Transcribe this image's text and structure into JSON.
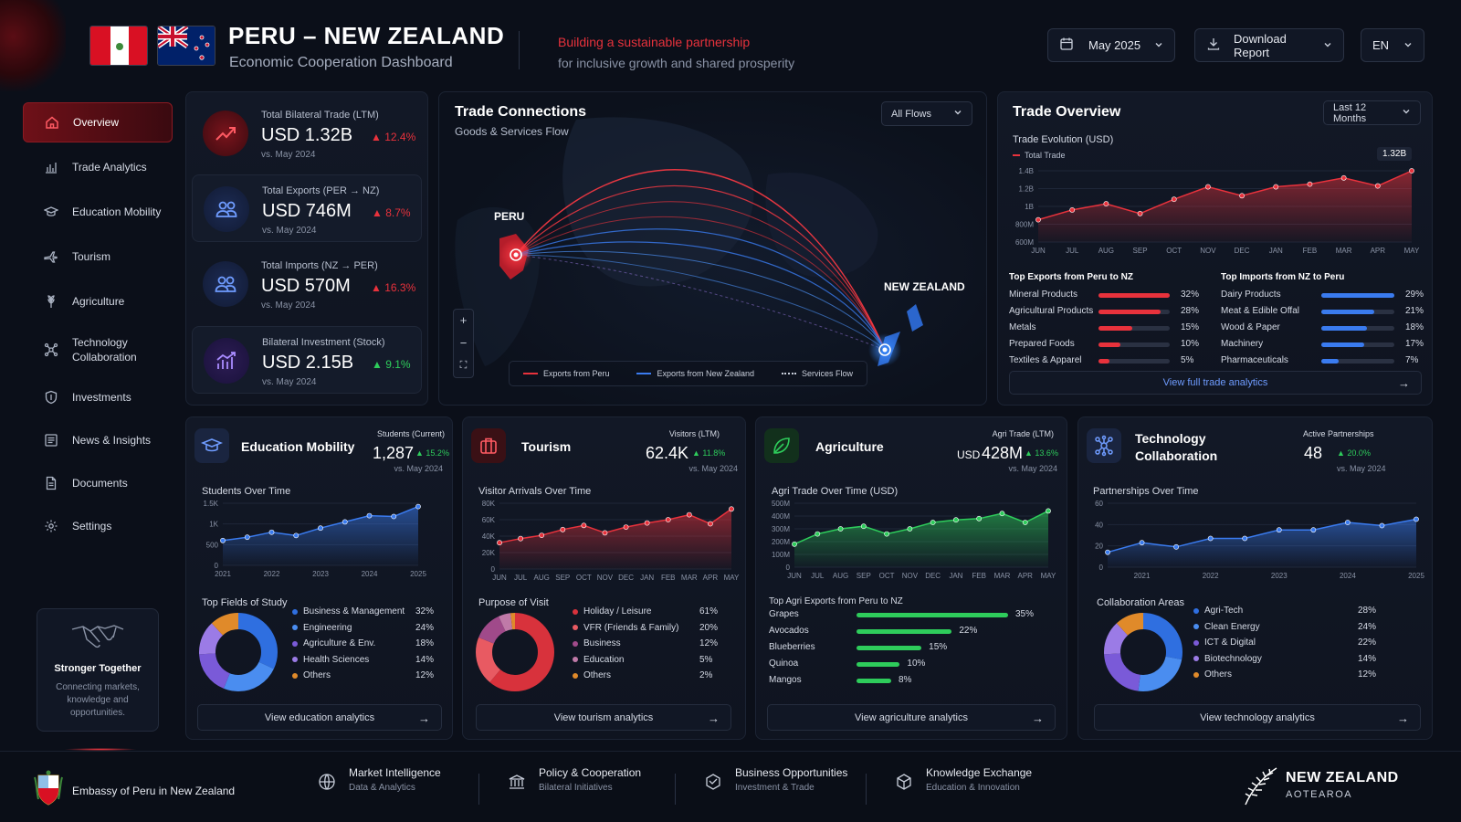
{
  "header": {
    "title": "PERU – NEW ZEALAND",
    "subtitle": "Economic Cooperation Dashboard",
    "tagline_1": "Building a sustainable partnership",
    "tagline_2": "for inclusive growth and shared prosperity",
    "date_label": "May 2025",
    "download_label": "Download Report",
    "lang_label": "EN"
  },
  "sidebar": {
    "items": [
      {
        "label": "Overview",
        "icon": "home-icon"
      },
      {
        "label": "Trade Analytics",
        "icon": "bar-chart-icon"
      },
      {
        "label": "Education Mobility",
        "icon": "graduation-cap-icon"
      },
      {
        "label": "Tourism",
        "icon": "plane-icon"
      },
      {
        "label": "Agriculture",
        "icon": "wheat-icon"
      },
      {
        "label": "Technology Collaboration",
        "icon": "network-icon"
      },
      {
        "label": "Investments",
        "icon": "shield-dollar-icon"
      },
      {
        "label": "News & Insights",
        "icon": "newspaper-icon"
      },
      {
        "label": "Documents",
        "icon": "document-icon"
      },
      {
        "label": "Settings",
        "icon": "gear-icon"
      }
    ],
    "together": {
      "title": "Stronger Together",
      "text": "Connecting markets, knowledge and opportunities."
    }
  },
  "stats": [
    {
      "label": "Total Bilateral Trade (LTM)",
      "value": "USD 1.32B",
      "change": "12.4%",
      "direction": "up",
      "compare": "vs. May 2024",
      "color": "#e8323c"
    },
    {
      "label": "Total Exports (PER → NZ)",
      "value": "USD 746M",
      "change": "8.7%",
      "direction": "up",
      "compare": "vs. May 2024",
      "color": "#e8323c"
    },
    {
      "label": "Total Imports (NZ → PER)",
      "value": "USD 570M",
      "change": "16.3%",
      "direction": "up",
      "compare": "vs. May 2024",
      "color": "#e8323c"
    },
    {
      "label": "Bilateral Investment (Stock)",
      "value": "USD 2.15B",
      "change": "9.1%",
      "direction": "up",
      "compare": "vs. May 2024",
      "color": "#2ecc5b"
    }
  ],
  "map": {
    "title": "Trade Connections",
    "subtitle": "Goods & Services Flow",
    "filter": "All Flows",
    "label_peru": "PERU",
    "label_nz": "NEW ZEALAND",
    "legend": [
      "Exports from Peru",
      "Exports from New Zealand",
      "Services Flow"
    ],
    "zoom_in": "+",
    "zoom_out": "−",
    "fullscreen": "⛶"
  },
  "trade_overview": {
    "title": "Trade Overview",
    "range": "Last 12 Months",
    "chart_title": "Trade Evolution (USD)",
    "legend": "Total Trade",
    "badge": "1.32B",
    "exports_title": "Top Exports from Peru to NZ",
    "imports_title": "Top Imports from NZ to Peru",
    "exports": [
      {
        "name": "Mineral Products",
        "pct": 32,
        "label": "32%"
      },
      {
        "name": "Agricultural Products",
        "pct": 28,
        "label": "28%"
      },
      {
        "name": "Metals",
        "pct": 15,
        "label": "15%"
      },
      {
        "name": "Prepared Foods",
        "pct": 10,
        "label": "10%"
      },
      {
        "name": "Textiles & Apparel",
        "pct": 5,
        "label": "5%"
      }
    ],
    "imports": [
      {
        "name": "Dairy Products",
        "pct": 29,
        "label": "29%"
      },
      {
        "name": "Meat & Edible Offal",
        "pct": 21,
        "label": "21%"
      },
      {
        "name": "Wood & Paper",
        "pct": 18,
        "label": "18%"
      },
      {
        "name": "Machinery",
        "pct": 17,
        "label": "17%"
      },
      {
        "name": "Pharmaceuticals",
        "pct": 7,
        "label": "7%"
      }
    ],
    "link": "View full trade analytics"
  },
  "education": {
    "title": "Education Mobility",
    "kpi_label": "Students (Current)",
    "kpi_value": "1,287",
    "kpi_change": "15.2%",
    "compare": "vs. May 2024",
    "chart_title": "Students Over Time",
    "donut_title": "Top Fields of Study",
    "fields": [
      {
        "name": "Business & Management",
        "pct": 32,
        "label": "32%",
        "color": "#2f6fe0"
      },
      {
        "name": "Engineering",
        "pct": 24,
        "label": "24%",
        "color": "#4a8df0"
      },
      {
        "name": "Agriculture & Env.",
        "pct": 18,
        "label": "18%",
        "color": "#7a5ad8"
      },
      {
        "name": "Health Sciences",
        "pct": 14,
        "label": "14%",
        "color": "#9b7be6"
      },
      {
        "name": "Others",
        "pct": 12,
        "label": "12%",
        "color": "#e08a2a"
      }
    ],
    "link": "View education analytics"
  },
  "tourism": {
    "title": "Tourism",
    "kpi_label": "Visitors (LTM)",
    "kpi_value": "62.4K",
    "kpi_change": "11.8%",
    "compare": "vs. May 2024",
    "chart_title": "Visitor Arrivals Over Time",
    "donut_title": "Purpose of Visit",
    "purposes": [
      {
        "name": "Holiday / Leisure",
        "pct": 61,
        "label": "61%",
        "color": "#d8323c"
      },
      {
        "name": "VFR (Friends & Family)",
        "pct": 20,
        "label": "20%",
        "color": "#e85a62"
      },
      {
        "name": "Business",
        "pct": 12,
        "label": "12%",
        "color": "#a04a8a"
      },
      {
        "name": "Education",
        "pct": 5,
        "label": "5%",
        "color": "#c07aa8"
      },
      {
        "name": "Others",
        "pct": 2,
        "label": "2%",
        "color": "#e08a2a"
      }
    ],
    "link": "View tourism analytics"
  },
  "agriculture": {
    "title": "Agriculture",
    "kpi_label": "Agri Trade (LTM)",
    "kpi_value_prefix": "USD",
    "kpi_value": "428M",
    "kpi_change": "13.6%",
    "compare": "vs. May 2024",
    "chart_title": "Agri Trade Over Time (USD)",
    "list_title": "Top Agri Exports from Peru to NZ",
    "items": [
      {
        "name": "Grapes",
        "pct": 35,
        "label": "35%"
      },
      {
        "name": "Avocados",
        "pct": 22,
        "label": "22%"
      },
      {
        "name": "Blueberries",
        "pct": 15,
        "label": "15%"
      },
      {
        "name": "Quinoa",
        "pct": 10,
        "label": "10%"
      },
      {
        "name": "Mangos",
        "pct": 8,
        "label": "8%"
      }
    ],
    "link": "View agriculture analytics"
  },
  "technology": {
    "title_1": "Technology",
    "title_2": "Collaboration",
    "kpi_label": "Active Partnerships",
    "kpi_value": "48",
    "kpi_change": "20.0%",
    "compare": "vs. May 2024",
    "chart_title": "Partnerships Over Time",
    "donut_title": "Collaboration Areas",
    "areas": [
      {
        "name": "Agri-Tech",
        "pct": 28,
        "label": "28%",
        "color": "#2f6fe0"
      },
      {
        "name": "Clean Energy",
        "pct": 24,
        "label": "24%",
        "color": "#4a8df0"
      },
      {
        "name": "ICT & Digital",
        "pct": 22,
        "label": "22%",
        "color": "#7a5ad8"
      },
      {
        "name": "Biotechnology",
        "pct": 14,
        "label": "14%",
        "color": "#9b7be6"
      },
      {
        "name": "Others",
        "pct": 12,
        "label": "12%",
        "color": "#e08a2a"
      }
    ],
    "link": "View technology analytics"
  },
  "chart_data": [
    {
      "type": "area",
      "title": "Trade Evolution (USD)",
      "series": [
        {
          "name": "Total Trade",
          "values": [
            850,
            960,
            1030,
            920,
            1080,
            1220,
            1120,
            1220,
            1250,
            1320,
            1230,
            1400
          ]
        }
      ],
      "x": [
        "JUN",
        "JUL",
        "AUG",
        "SEP",
        "OCT",
        "NOV",
        "DEC",
        "JAN",
        "FEB",
        "MAR",
        "APR",
        "MAY"
      ],
      "ylim": [
        600,
        1400
      ],
      "yticks": [
        "600M",
        "800M",
        "1B",
        "1.2B",
        "1.4B"
      ],
      "unit": "USD millions"
    },
    {
      "type": "area",
      "title": "Students Over Time",
      "x": [
        2021,
        2021.5,
        2022,
        2022.5,
        2023,
        2023.5,
        2024,
        2024.5,
        2025
      ],
      "x_ticks": [
        "2021",
        "2022",
        "2023",
        "2024",
        "2025"
      ],
      "values": [
        600,
        680,
        800,
        720,
        900,
        1050,
        1200,
        1180,
        1420
      ],
      "ylim": [
        0,
        1500
      ],
      "yticks": [
        "0",
        "500",
        "1K",
        "1.5K"
      ]
    },
    {
      "type": "area",
      "title": "Visitor Arrivals Over Time",
      "x": [
        "JUN",
        "JUL",
        "AUG",
        "SEP",
        "OCT",
        "NOV",
        "DEC",
        "JAN",
        "FEB",
        "MAR",
        "APR",
        "MAY"
      ],
      "values": [
        32000,
        37000,
        41000,
        48000,
        53000,
        44000,
        51000,
        56000,
        60000,
        66000,
        55000,
        73000
      ],
      "ylim": [
        0,
        80000
      ],
      "yticks": [
        "0",
        "20K",
        "40K",
        "60K",
        "80K"
      ]
    },
    {
      "type": "area",
      "title": "Agri Trade Over Time (USD)",
      "x": [
        "JUN",
        "JUL",
        "AUG",
        "SEP",
        "OCT",
        "NOV",
        "DEC",
        "JAN",
        "FEB",
        "MAR",
        "APR",
        "MAY"
      ],
      "values": [
        180,
        260,
        300,
        320,
        260,
        300,
        350,
        370,
        380,
        420,
        350,
        440
      ],
      "ylim": [
        0,
        500
      ],
      "yticks": [
        "0",
        "100M",
        "200M",
        "300M",
        "400M",
        "500M"
      ]
    },
    {
      "type": "line",
      "title": "Partnerships Over Time",
      "x": [
        2020.5,
        2021,
        2021.5,
        2022,
        2022.5,
        2023,
        2023.5,
        2024,
        2024.5,
        2025
      ],
      "x_ticks": [
        "2021",
        "2022",
        "2023",
        "2024",
        "2025"
      ],
      "values": [
        14,
        23,
        19,
        27,
        27,
        35,
        35,
        42,
        39,
        45
      ],
      "ylim": [
        0,
        60
      ],
      "yticks": [
        "0",
        "20",
        "40",
        "60"
      ]
    }
  ],
  "footer": {
    "embassy": "Embassy of Peru in New Zealand",
    "items": [
      {
        "title": "Market Intelligence",
        "sub": "Data & Analytics"
      },
      {
        "title": "Policy & Cooperation",
        "sub": "Bilateral Initiatives"
      },
      {
        "title": "Business Opportunities",
        "sub": "Investment & Trade"
      },
      {
        "title": "Knowledge Exchange",
        "sub": "Education & Innovation"
      }
    ],
    "nz_brand_1": "NEW ZEALAND",
    "nz_brand_2": "AOTEAROA"
  },
  "colors": {
    "accent_red": "#e8323c",
    "accent_blue": "#3a7bef",
    "accent_green": "#2ecc5b",
    "bg": "#0b0f19"
  }
}
